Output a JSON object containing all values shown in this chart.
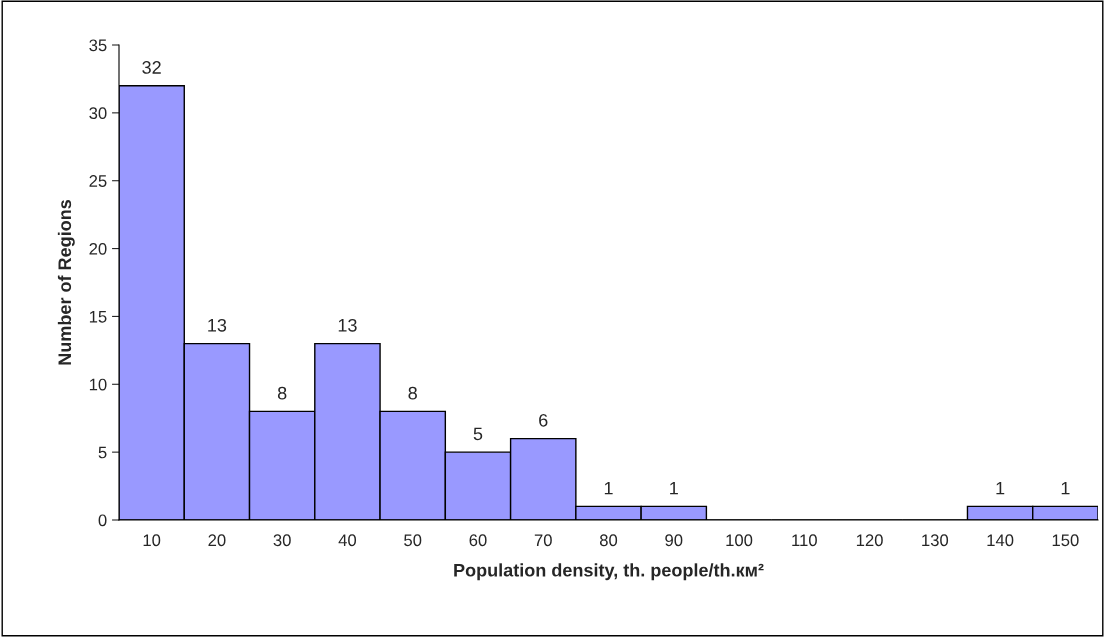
{
  "chart_data": {
    "type": "bar",
    "categories": [
      "10",
      "20",
      "30",
      "40",
      "50",
      "60",
      "70",
      "80",
      "90",
      "100",
      "110",
      "120",
      "130",
      "140",
      "150"
    ],
    "values": [
      32,
      13,
      8,
      13,
      8,
      5,
      6,
      1,
      1,
      0,
      0,
      0,
      0,
      1,
      1
    ],
    "value_labels": [
      "32",
      "13",
      "8",
      "13",
      "8",
      "5",
      "6",
      "1",
      "1",
      null,
      null,
      null,
      null,
      "1",
      "1"
    ],
    "color": "#9999ff",
    "xlabel": "Population density, th. people/th.км²",
    "ylabel": "Number of Regions",
    "ylim": [
      0,
      35
    ],
    "yticks": [
      0,
      5,
      10,
      15,
      20,
      25,
      30,
      35
    ],
    "grid": false
  }
}
